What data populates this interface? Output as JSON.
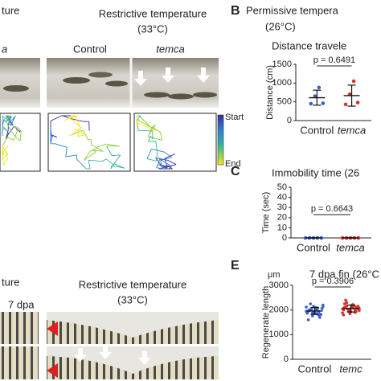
{
  "texts": {
    "top_left_heading": "ture",
    "top_left_temca": "a",
    "top_restrictive": "Restrictive temperature",
    "top_restrictive_temp": "(33°C)",
    "control": "Control",
    "temca": "temca",
    "start": "Start",
    "end": "End",
    "bottom_left_heading": "ture",
    "bottom_left_dpa": "7 dpa",
    "bottom_restrictive": "Restrictive temperature",
    "bottom_restrictive_temp": "(33°C)",
    "panel_b": "B",
    "panel_b_title": "Permissive tempera",
    "panel_b_temp": "(26°C)",
    "panel_c": "C",
    "panel_e": "E",
    "panel_e_unit": "μm"
  },
  "chart_data": [
    {
      "type": "dotplot",
      "title": "Distance travele",
      "ylabel": "Distance (cm)",
      "annotation": "p = 0.6491",
      "categories": [
        "Control",
        "temca"
      ],
      "colors": [
        "#3a5fcd",
        "#d9302c"
      ],
      "values": [
        [
          450,
          650,
          880,
          460
        ],
        [
          430,
          700,
          1050,
          480
        ]
      ],
      "mean": [
        610,
        665
      ],
      "sd": [
        200,
        280
      ],
      "ylim": [
        0,
        1500
      ],
      "yticks": [
        0,
        500,
        1000,
        1500
      ]
    },
    {
      "type": "dotplot",
      "title": "Immobility time (26",
      "ylabel": "Time (sec)",
      "annotation": "p = 0.6643",
      "categories": [
        "Control",
        "temca"
      ],
      "colors": [
        "#3a5fcd",
        "#d9302c"
      ],
      "values": [
        [
          0,
          0,
          0,
          0,
          0
        ],
        [
          0,
          0,
          0,
          0,
          0
        ]
      ],
      "mean": [
        0,
        0
      ],
      "sd": [
        0,
        0
      ],
      "ylim": [
        0,
        50
      ],
      "yticks": [
        0,
        10,
        20,
        30,
        40,
        50
      ]
    },
    {
      "type": "dotplot",
      "title": "7 dpa fin (26°C",
      "ylabel": "Regenerate length",
      "annotation": "p = 0.3906",
      "categories": [
        "Control",
        "temc"
      ],
      "colors": [
        "#3a5fcd",
        "#d9302c"
      ],
      "values": [
        [
          1950,
          2010,
          1880,
          2100,
          1790,
          2050,
          1920,
          1990,
          2150,
          1850,
          1700,
          2200,
          1960,
          2030,
          1900,
          2080,
          1820,
          2120,
          1980,
          1760,
          2000,
          1940,
          2060,
          1870,
          2250,
          1910,
          2020,
          1830,
          2140,
          1600
        ],
        [
          2050,
          2100,
          1950,
          2200,
          1900,
          2150,
          2000,
          2300,
          1850,
          2080,
          2120,
          1980,
          2250,
          2030,
          1920,
          2180,
          2060,
          1880,
          2400,
          2010,
          2130,
          1970,
          2090,
          1800,
          2160,
          2040,
          2220,
          1940,
          2070,
          2110
        ]
      ],
      "mean": [
        1960,
        2060
      ],
      "sd": [
        140,
        140
      ],
      "ylim": [
        0,
        3000
      ],
      "yticks": [
        0,
        1000,
        2000,
        3000
      ]
    }
  ]
}
